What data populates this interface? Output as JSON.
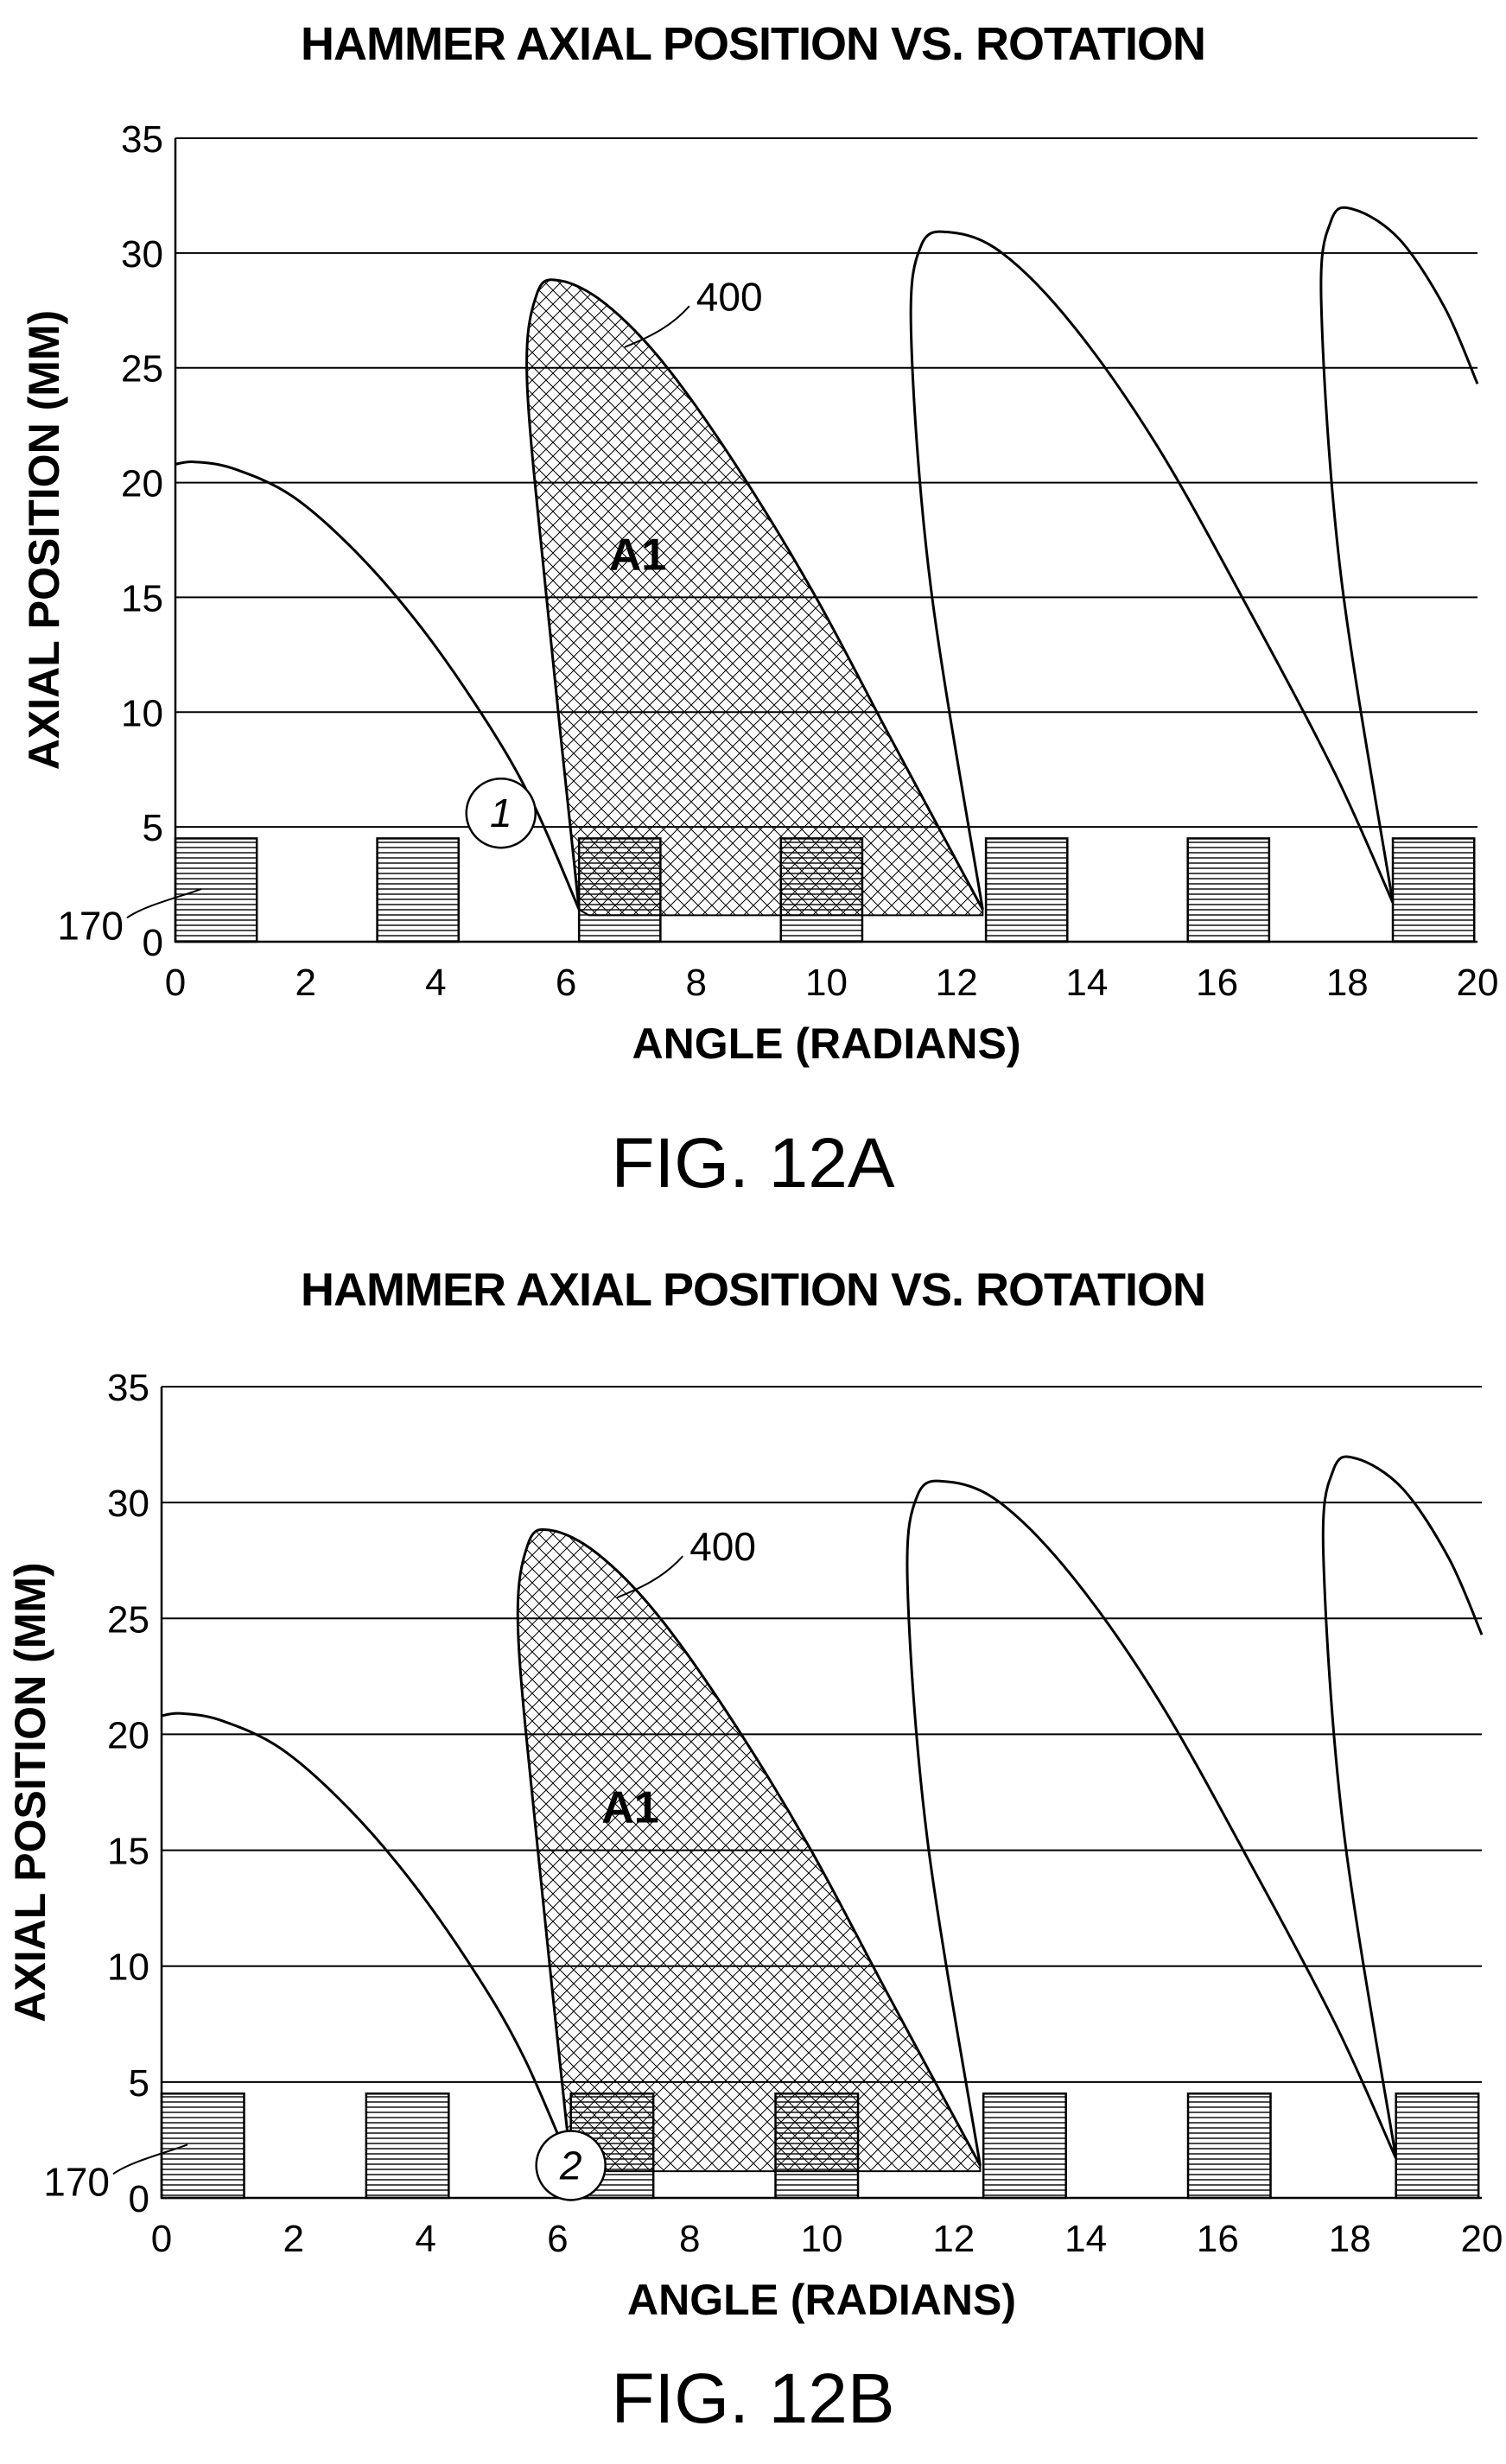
{
  "chart_data": [
    {
      "id": "fig12a",
      "type": "line",
      "title": "HAMMER AXIAL POSITION VS. ROTATION",
      "caption": "FIG. 12A",
      "xlabel": "ANGLE (RADIANS)",
      "ylabel": "AXIAL POSITION (MM)",
      "xlim": [
        0,
        20
      ],
      "ylim": [
        0,
        35
      ],
      "xticks": [
        "0",
        "2",
        "4",
        "6",
        "8",
        "10",
        "12",
        "14",
        "16",
        "18",
        "20"
      ],
      "yticks": [
        "0",
        "5",
        "10",
        "15",
        "20",
        "25",
        "30",
        "35"
      ],
      "grid": "horizontal",
      "curves": [
        {
          "x": [
            0,
            0.3,
            0.9,
            1.8,
            2.8,
            3.8,
            4.8,
            5.5,
            6.2
          ],
          "y": [
            20.8,
            20.9,
            20.6,
            19.4,
            16.9,
            13.6,
            9.5,
            6.0,
            1.4
          ]
        },
        {
          "x": [
            6.2,
            5.7,
            5.4,
            5.55,
            5.9,
            6.6,
            7.5,
            8.6,
            9.8,
            11.0,
            12.4
          ],
          "y": [
            1.4,
            15.0,
            24.5,
            28.2,
            28.8,
            27.8,
            25.2,
            20.8,
            15.2,
            8.8,
            1.4
          ]
        },
        {
          "x": [
            12.4,
            11.6,
            11.3,
            11.45,
            11.9,
            12.7,
            13.8,
            15.1,
            16.5,
            17.8,
            18.7
          ],
          "y": [
            1.4,
            15.5,
            26.5,
            30.3,
            30.9,
            30.0,
            26.8,
            21.5,
            14.4,
            7.4,
            1.7
          ]
        },
        {
          "x": [
            18.7,
            17.9,
            17.6,
            17.75,
            18.1,
            18.8,
            19.5,
            20.0
          ],
          "y": [
            1.7,
            16.0,
            27.8,
            31.4,
            31.9,
            30.6,
            27.6,
            24.3
          ]
        }
      ],
      "shaded_region": {
        "label": "A1",
        "fill": "cross-hatch"
      },
      "blocks": {
        "x": [
          0,
          3.1,
          6.2,
          9.3,
          12.45,
          15.55,
          18.7
        ],
        "width": 1.25,
        "height": 4.5
      },
      "annotations": [
        {
          "text": "400",
          "x": 8.0,
          "y": 27.5
        },
        {
          "text": "A1",
          "x": 7.1,
          "y": 16.2
        },
        {
          "text": "1",
          "x": 5.0,
          "y": 5.6
        },
        {
          "text": "170",
          "x": -0.5,
          "y": 1.3
        }
      ]
    },
    {
      "id": "fig12b",
      "type": "line",
      "title": "HAMMER AXIAL POSITION VS. ROTATION",
      "caption": "FIG. 12B",
      "xlabel": "ANGLE (RADIANS)",
      "ylabel": "AXIAL POSITION (MM)",
      "xlim": [
        0,
        20
      ],
      "ylim": [
        0,
        35
      ],
      "xticks": [
        "0",
        "2",
        "4",
        "6",
        "8",
        "10",
        "12",
        "14",
        "16",
        "18",
        "20"
      ],
      "yticks": [
        "0",
        "5",
        "10",
        "15",
        "20",
        "25",
        "30",
        "35"
      ],
      "grid": "horizontal",
      "curves": [
        {
          "x": [
            0,
            0.3,
            0.9,
            1.8,
            2.8,
            3.8,
            4.8,
            5.5,
            6.2
          ],
          "y": [
            20.8,
            20.9,
            20.6,
            19.4,
            16.9,
            13.6,
            9.5,
            6.0,
            1.4
          ]
        },
        {
          "x": [
            6.2,
            5.7,
            5.4,
            5.55,
            5.9,
            6.6,
            7.5,
            8.6,
            9.8,
            11.0,
            12.4
          ],
          "y": [
            1.4,
            15.0,
            24.5,
            28.2,
            28.8,
            27.8,
            25.2,
            20.8,
            15.2,
            8.8,
            1.4
          ]
        },
        {
          "x": [
            12.4,
            11.6,
            11.3,
            11.45,
            11.9,
            12.7,
            13.8,
            15.1,
            16.5,
            17.8,
            18.7
          ],
          "y": [
            1.4,
            15.5,
            26.5,
            30.3,
            30.9,
            30.0,
            26.8,
            21.5,
            14.4,
            7.4,
            1.7
          ]
        },
        {
          "x": [
            18.7,
            17.9,
            17.6,
            17.75,
            18.1,
            18.8,
            19.5,
            20.0
          ],
          "y": [
            1.7,
            16.0,
            27.8,
            31.4,
            31.9,
            30.6,
            27.6,
            24.3
          ]
        }
      ],
      "shaded_region": {
        "label": "A1",
        "fill": "cross-hatch"
      },
      "blocks": {
        "x": [
          0,
          3.1,
          6.2,
          9.3,
          12.45,
          15.55,
          18.7
        ],
        "width": 1.25,
        "height": 4.5
      },
      "annotations": [
        {
          "text": "400",
          "x": 8.0,
          "y": 27.5
        },
        {
          "text": "A1",
          "x": 7.1,
          "y": 16.2
        },
        {
          "text": "2",
          "x": 6.2,
          "y": 1.4
        },
        {
          "text": "170",
          "x": -0.5,
          "y": 1.3
        }
      ]
    }
  ]
}
